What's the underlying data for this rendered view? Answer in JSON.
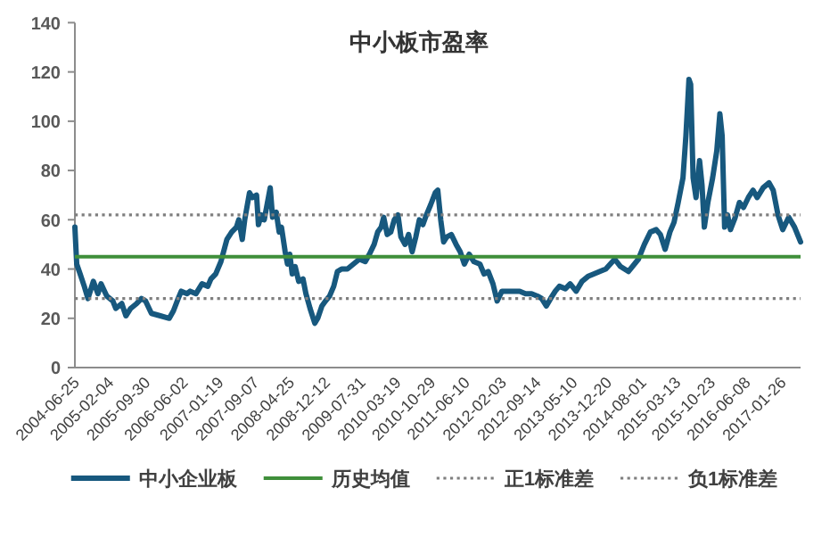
{
  "chart_data": {
    "type": "line",
    "title": "中小板市盈率",
    "x": [
      "2004-06-25",
      "2004-07-07",
      "2004-07-29",
      "2004-08-25",
      "2004-09-18",
      "2004-10-23",
      "2004-11-22",
      "2004-12-12",
      "2005-01-19",
      "2005-02-27",
      "2005-03-18",
      "2005-04-26",
      "2005-05-23",
      "2005-06-23",
      "2005-08-01",
      "2005-09-01",
      "2005-09-28",
      "2005-11-05",
      "2006-01-02",
      "2006-03-01",
      "2006-03-28",
      "2006-04-28",
      "2006-05-18",
      "2006-06-25",
      "2006-07-15",
      "2006-08-22",
      "2006-09-30",
      "2006-11-07",
      "2006-11-27",
      "2006-12-28",
      "2007-01-31",
      "2007-03-11",
      "2007-04-11",
      "2007-05-12",
      "2007-05-27",
      "2007-06-19",
      "2007-07-05",
      "2007-08-05",
      "2007-08-24",
      "2007-09-20",
      "2007-10-02",
      "2007-10-21",
      "2007-11-09",
      "2007-12-18",
      "2008-01-02",
      "2008-01-26",
      "2008-02-14",
      "2008-02-29",
      "2008-03-24",
      "2008-04-08",
      "2008-04-23",
      "2008-05-09",
      "2008-05-28",
      "2008-06-20",
      "2008-07-18",
      "2008-08-06",
      "2008-09-02",
      "2008-10-03",
      "2008-10-22",
      "2008-11-18",
      "2008-12-11",
      "2009-01-07",
      "2009-02-03",
      "2009-02-27",
      "2009-03-26",
      "2009-05-03",
      "2009-06-11",
      "2009-07-20",
      "2009-08-27",
      "2009-09-23",
      "2009-10-24",
      "2009-11-16",
      "2009-12-09",
      "2009-12-25",
      "2010-01-17",
      "2010-02-09",
      "2010-03-04",
      "2010-03-28",
      "2010-04-16",
      "2010-05-13",
      "2010-06-05",
      "2010-06-28",
      "2010-07-22",
      "2010-08-14",
      "2010-09-06",
      "2010-09-29",
      "2010-10-26",
      "2010-11-26",
      "2010-12-12",
      "2010-12-31",
      "2011-01-19",
      "2011-02-08",
      "2011-03-10",
      "2011-04-10",
      "2011-05-07",
      "2011-06-03",
      "2011-07-04",
      "2011-08-04",
      "2011-09-12",
      "2011-10-09",
      "2011-11-05",
      "2011-12-06",
      "2012-01-02",
      "2012-02-02",
      "2012-03-11",
      "2012-04-19",
      "2012-05-28",
      "2012-07-05",
      "2012-08-13",
      "2012-09-21",
      "2012-10-18",
      "2012-11-17",
      "2012-12-15",
      "2013-01-14",
      "2013-02-10",
      "2013-03-21",
      "2013-04-21",
      "2013-05-30",
      "2013-07-07",
      "2013-08-15",
      "2013-09-23",
      "2013-10-31",
      "2013-12-09",
      "2014-02-05",
      "2014-03-15",
      "2014-05-05",
      "2014-07-09",
      "2014-08-17",
      "2014-09-25",
      "2014-11-02",
      "2014-11-29",
      "2014-12-30",
      "2015-01-30",
      "2015-02-26",
      "2015-03-25",
      "2015-04-25",
      "2015-05-14",
      "2015-06-03",
      "2015-06-14",
      "2015-06-30",
      "2015-07-19",
      "2015-08-11",
      "2015-08-27",
      "2015-09-11",
      "2015-10-04",
      "2015-11-04",
      "2015-12-01",
      "2015-12-21",
      "2016-01-05",
      "2016-01-21",
      "2016-02-09",
      "2016-02-28",
      "2016-03-30",
      "2016-04-26",
      "2016-05-23",
      "2016-06-23",
      "2016-07-24",
      "2016-08-20",
      "2016-09-28",
      "2016-11-05",
      "2016-12-02",
      "2017-01-02",
      "2017-02-02",
      "2017-03-13",
      "2017-04-20",
      "2017-05-29"
    ],
    "series": [
      {
        "name": "中小企业板",
        "color": "#17587e",
        "values": [
          57,
          42,
          38,
          33,
          28,
          35,
          30,
          34,
          29,
          27,
          24,
          26,
          21,
          24,
          26,
          28,
          27,
          22,
          21,
          20,
          23,
          28,
          31,
          30,
          31,
          30,
          34,
          33,
          36,
          38,
          43,
          52,
          55,
          57,
          60,
          52,
          60,
          71,
          69,
          70,
          58,
          62,
          60,
          73,
          61,
          63,
          55,
          57,
          47,
          42,
          46,
          38,
          41,
          35,
          36,
          30,
          24,
          18,
          20,
          25,
          27,
          29,
          33,
          39,
          40,
          40,
          42,
          44,
          43,
          46,
          50,
          55,
          57,
          61,
          54,
          55,
          60,
          62,
          53,
          50,
          54,
          47,
          53,
          60,
          58,
          62,
          66,
          71,
          72,
          60,
          51,
          53,
          54,
          50,
          47,
          42,
          46,
          43,
          42,
          38,
          39,
          34,
          27,
          31,
          31,
          31,
          31,
          30,
          30,
          29,
          28,
          25,
          28,
          31,
          33,
          32,
          34,
          31,
          35,
          37,
          38,
          39,
          40,
          44,
          41,
          39,
          44,
          50,
          55,
          56,
          54,
          48,
          55,
          59,
          67,
          77,
          94,
          117,
          115,
          77,
          69,
          84,
          74,
          57,
          67,
          77,
          88,
          103,
          94,
          57,
          62,
          56,
          61,
          67,
          65,
          69,
          72,
          69,
          73,
          75,
          72,
          62,
          56,
          61,
          57,
          51
        ]
      }
    ],
    "xlim": [
      "2004-06-25",
      "2017-05-29"
    ],
    "xticks": [
      "2004-06-25",
      "2005-02-04",
      "2005-09-30",
      "2006-06-02",
      "2007-01-19",
      "2007-09-07",
      "2008-04-25",
      "2008-12-12",
      "2009-07-31",
      "2010-03-19",
      "2010-10-29",
      "2011-06-10",
      "2012-02-03",
      "2012-09-14",
      "2013-05-10",
      "2013-12-20",
      "2014-08-01",
      "2015-03-13",
      "2015-10-23",
      "2016-06-08",
      "2017-01-26"
    ],
    "ylim": [
      0,
      140
    ],
    "yticks": [
      0,
      20,
      40,
      60,
      80,
      100,
      120,
      140
    ],
    "ref_lines": [
      {
        "axis": "y",
        "value": 45,
        "label": "历史均值",
        "color": "#3f8f3a",
        "line_style": "solid"
      },
      {
        "axis": "y",
        "value": 62,
        "label": "正1标准差",
        "color": "#7f7f7f",
        "line_style": "dotted"
      },
      {
        "axis": "y",
        "value": 28,
        "label": "负1标准差",
        "color": "#7f7f7f",
        "line_style": "dotted"
      }
    ],
    "legend": "bottom"
  }
}
